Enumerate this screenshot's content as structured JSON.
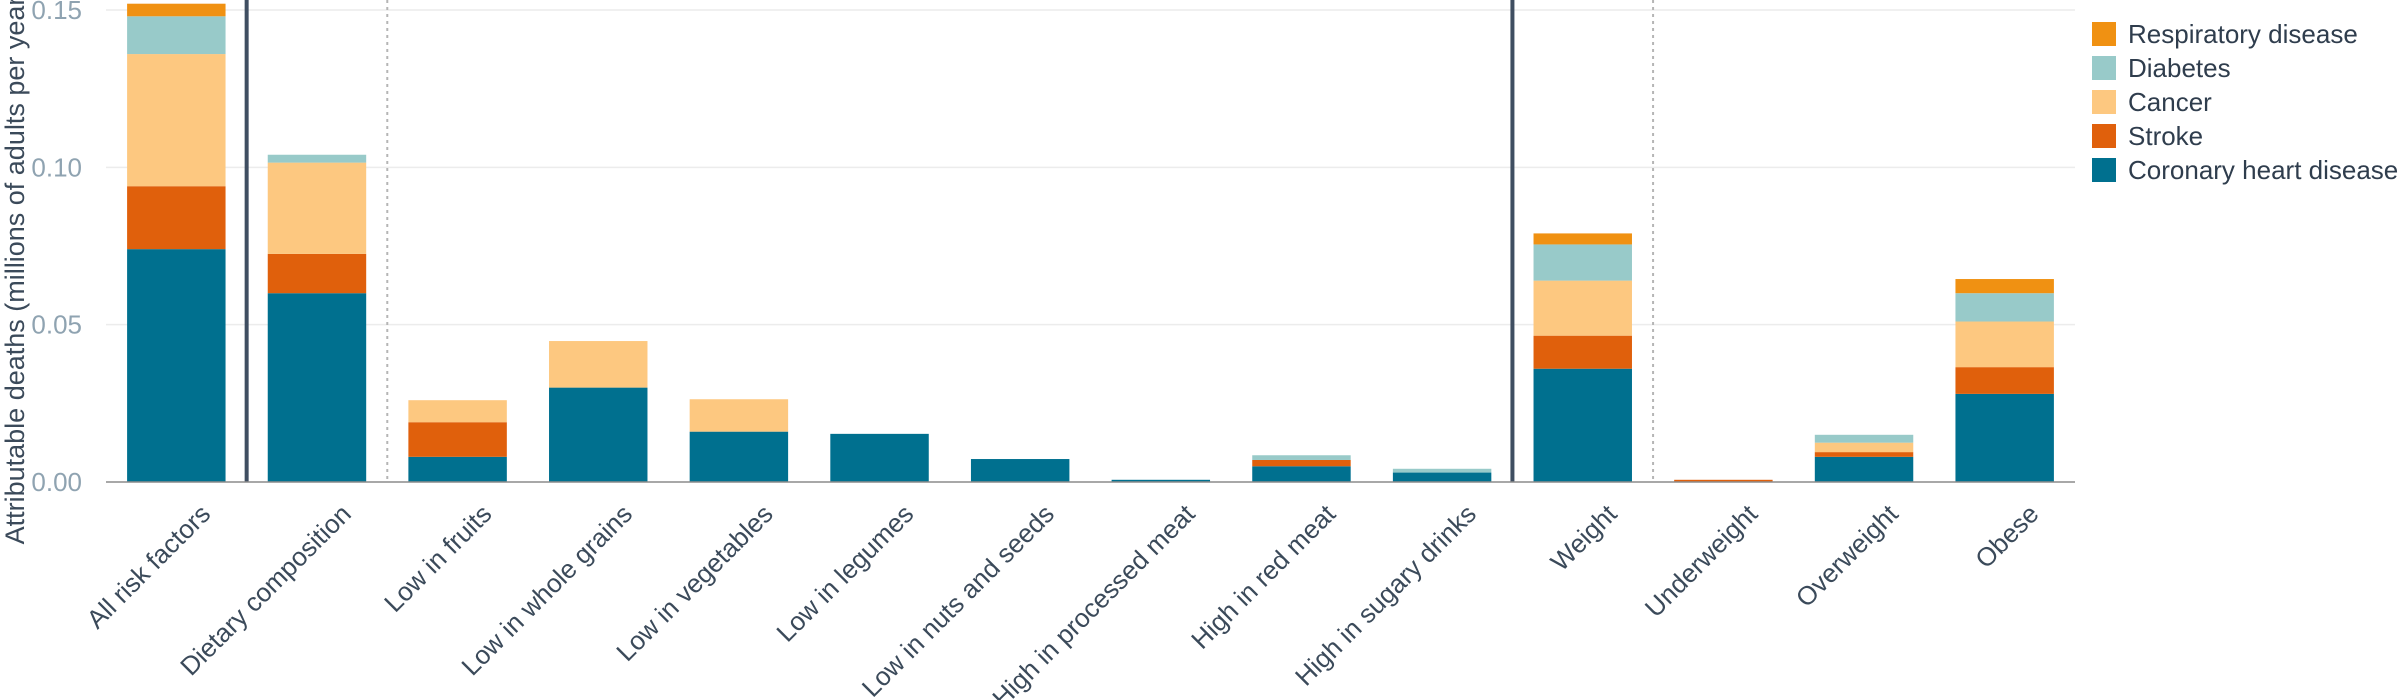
{
  "chart_data": {
    "type": "bar",
    "stacked": true,
    "ylabel": "Attributable deaths (millions of adults per year)",
    "xlabel": "",
    "ylim": [
      0,
      0.15
    ],
    "yticks": [
      "0.00",
      "0.05",
      "0.10",
      "0.15"
    ],
    "grid": true,
    "legend_position": "top-right",
    "categories": [
      "All risk factors",
      "Dietary composition",
      "Low in fruits",
      "Low in whole grains",
      "Low in vegetables",
      "Low in legumes",
      "Low in nuts and seeds",
      "High in processed meat",
      "High in red meat",
      "High in sugary drinks",
      "Weight",
      "Underweight",
      "Overweight",
      "Obese"
    ],
    "series": [
      {
        "name": "Coronary heart disease",
        "color": "#00708f",
        "values": [
          0.074,
          0.06,
          0.008,
          0.03,
          0.016,
          0.0153,
          0.0073,
          0.0007,
          0.005,
          0.003,
          0.036,
          0.0,
          0.008,
          0.028
        ]
      },
      {
        "name": "Stroke",
        "color": "#e0600c",
        "values": [
          0.02,
          0.0125,
          0.011,
          0.0,
          0.0,
          0.0,
          0.0,
          0.0,
          0.002,
          0.0,
          0.0105,
          0.0007,
          0.0015,
          0.0085
        ]
      },
      {
        "name": "Cancer",
        "color": "#fdc880",
        "values": [
          0.042,
          0.029,
          0.007,
          0.0148,
          0.0103,
          0.0,
          0.0,
          0.0,
          0.0,
          0.0,
          0.0175,
          0.0,
          0.003,
          0.0145
        ]
      },
      {
        "name": "Diabetes",
        "color": "#98cac9",
        "values": [
          0.012,
          0.0025,
          0.0,
          0.0,
          0.0,
          0.0,
          0.0,
          0.0,
          0.0015,
          0.0012,
          0.0115,
          0.0,
          0.0025,
          0.009
        ]
      },
      {
        "name": "Respiratory disease",
        "color": "#f09112",
        "values": [
          0.004,
          0.0,
          0.0,
          0.0,
          0.0,
          0.0,
          0.0,
          0.0,
          0.0,
          0.0,
          0.0035,
          0.0,
          0.0,
          0.0045
        ]
      }
    ],
    "separators": [
      {
        "after_index": 0,
        "style": "solid"
      },
      {
        "after_index": 1,
        "style": "dotted"
      },
      {
        "after_index": 9,
        "style": "solid"
      },
      {
        "after_index": 10,
        "style": "dotted"
      }
    ],
    "legend_order": [
      "Respiratory disease",
      "Diabetes",
      "Cancer",
      "Stroke",
      "Coronary heart disease"
    ]
  }
}
